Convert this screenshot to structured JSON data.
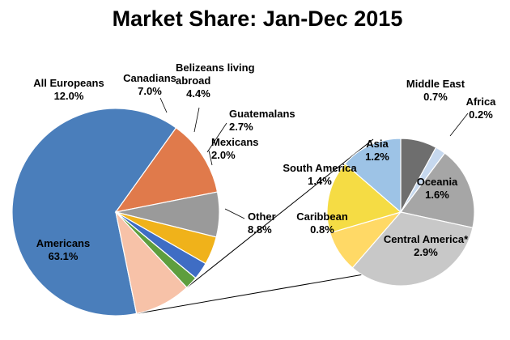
{
  "chart_data": {
    "type": "pie",
    "title": "Market Share: Jan-Dec 2015",
    "main_pie": {
      "slices": [
        {
          "name": "Americans",
          "label_lines": [
            "Americans"
          ],
          "value_label": "63.1%",
          "value": 63.1,
          "color": "#4A7EBB"
        },
        {
          "name": "All Europeans",
          "label_lines": [
            "All Europeans"
          ],
          "value_label": "12.0%",
          "value": 12.0,
          "color": "#E07A4B"
        },
        {
          "name": "Canadians",
          "label_lines": [
            "Canadians"
          ],
          "value_label": "7.0%",
          "value": 7.0,
          "color": "#9A9A9A"
        },
        {
          "name": "Belizeans living abroad",
          "label_lines": [
            "Belizeans living",
            "abroad"
          ],
          "value_label": "4.4%",
          "value": 4.4,
          "color": "#F0B21A"
        },
        {
          "name": "Guatemalans",
          "label_lines": [
            "Guatemalans"
          ],
          "value_label": "2.7%",
          "value": 2.7,
          "color": "#3F6DC4"
        },
        {
          "name": "Mexicans",
          "label_lines": [
            "Mexicans"
          ],
          "value_label": "2.0%",
          "value": 2.0,
          "color": "#5E9E3E"
        },
        {
          "name": "Other",
          "label_lines": [
            "Other"
          ],
          "value_label": "8.8%",
          "value": 8.8,
          "color": "#F7C2A8"
        }
      ]
    },
    "secondary_pie": {
      "slices": [
        {
          "name": "Middle East",
          "label_lines": [
            "Middle East"
          ],
          "value_label": "0.7%",
          "value": 0.7,
          "color": "#6E6E6E"
        },
        {
          "name": "Africa",
          "label_lines": [
            "Africa"
          ],
          "value_label": "0.2%",
          "value": 0.2,
          "color": "#C6D8EE"
        },
        {
          "name": "Oceania",
          "label_lines": [
            "Oceania"
          ],
          "value_label": "1.6%",
          "value": 1.6,
          "color": "#A6A6A6"
        },
        {
          "name": "Central America*",
          "label_lines": [
            "Central America*"
          ],
          "value_label": "2.9%",
          "value": 2.9,
          "color": "#C8C8C8"
        },
        {
          "name": "Caribbean",
          "label_lines": [
            "Caribbean"
          ],
          "value_label": "0.8%",
          "value": 0.8,
          "color": "#FFD966"
        },
        {
          "name": "South America",
          "label_lines": [
            "South America"
          ],
          "value_label": "1.4%",
          "value": 1.4,
          "color": "#F5DC44"
        },
        {
          "name": "Asia",
          "label_lines": [
            "Asia"
          ],
          "value_label": "1.2%",
          "value": 1.2,
          "color": "#9DC3E6"
        }
      ]
    }
  }
}
